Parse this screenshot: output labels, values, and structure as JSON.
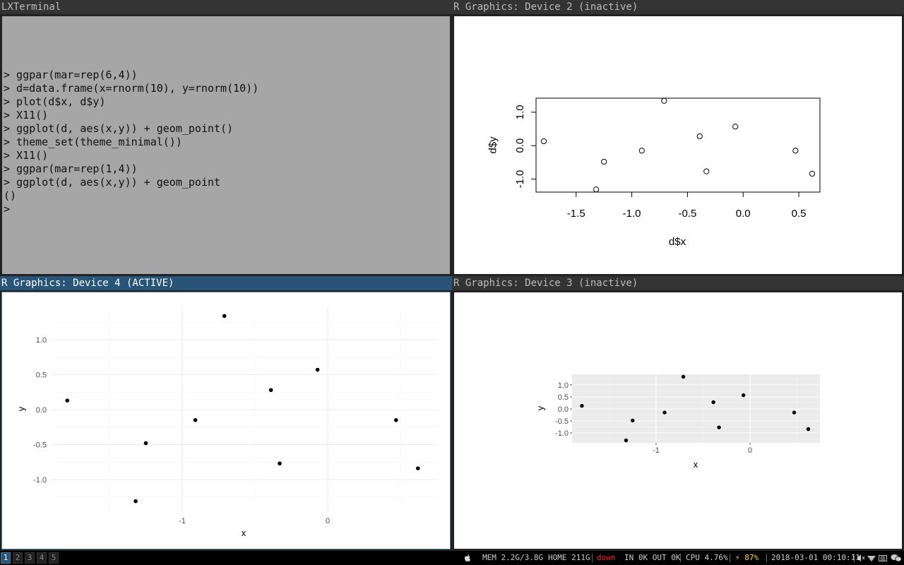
{
  "terminal": {
    "title": "LXTerminal",
    "lines": [
      "> ggpar(mar=rep(6,4))",
      "> d=data.frame(x=rnorm(10), y=rnorm(10))",
      "> plot(d$x, d$y)",
      "> X11()",
      "> ggplot(d, aes(x,y)) + geom_point()",
      "> theme_set(theme_minimal())",
      "> X11()",
      "> ggpar(mar=rep(1,4))",
      "> ggplot(d, aes(x,y)) + geom_point",
      "()",
      ">"
    ]
  },
  "device2": {
    "title": "R Graphics: Device 2 (inactive)",
    "xlabel": "d$x",
    "ylabel": "d$y",
    "xticks": [
      "-1.5",
      "-1.0",
      "-0.5",
      "0.0",
      "0.5"
    ],
    "yticks": [
      "1.0",
      "0.0",
      "-1.0"
    ]
  },
  "device4": {
    "title": "R Graphics: Device 4 (ACTIVE)",
    "xlabel": "x",
    "ylabel": "y",
    "xticks": [
      "-1",
      "0"
    ],
    "yticks": [
      "1.0",
      "0.5",
      "0.0",
      "-0.5",
      "-1.0"
    ]
  },
  "device3": {
    "title": "R Graphics: Device 3 (inactive)",
    "xlabel": "x",
    "ylabel": "y",
    "xticks": [
      "-1",
      "0"
    ],
    "yticks": [
      "1.0",
      "0.5",
      "0.0",
      "-0.5",
      "-1.0"
    ]
  },
  "chart_data": [
    {
      "type": "scatter",
      "title": "",
      "xlabel": "d$x",
      "ylabel": "d$y",
      "x": [
        -1.79,
        -1.32,
        -1.25,
        -0.91,
        -0.71,
        -0.39,
        -0.33,
        -0.07,
        0.47,
        0.62
      ],
      "y": [
        0.13,
        -1.31,
        -0.48,
        -0.15,
        1.34,
        0.28,
        -0.77,
        0.57,
        -0.15,
        -0.84
      ],
      "xlim": [
        -1.86,
        0.69
      ],
      "ylim": [
        -1.39,
        1.42
      ],
      "marker": "open-circle",
      "grid": false
    },
    {
      "type": "scatter",
      "title": "",
      "xlabel": "x",
      "ylabel": "y",
      "x": [
        -1.79,
        -1.32,
        -1.25,
        -0.91,
        -0.71,
        -0.39,
        -0.33,
        -0.07,
        0.47,
        0.62
      ],
      "y": [
        0.13,
        -1.31,
        -0.48,
        -0.15,
        1.34,
        0.28,
        -0.77,
        0.57,
        -0.15,
        -0.84
      ],
      "marker": "filled-dot",
      "grid": true,
      "theme": "minimal"
    },
    {
      "type": "scatter",
      "title": "",
      "xlabel": "x",
      "ylabel": "y",
      "x": [
        -1.79,
        -1.32,
        -1.25,
        -0.91,
        -0.71,
        -0.39,
        -0.33,
        -0.07,
        0.47,
        0.62
      ],
      "y": [
        0.13,
        -1.31,
        -0.48,
        -0.15,
        1.34,
        0.28,
        -0.77,
        0.57,
        -0.15,
        -0.84
      ],
      "marker": "filled-dot",
      "grid": true,
      "theme": "grey"
    }
  ],
  "statusbar": {
    "workspaces": [
      "1",
      "2",
      "3",
      "4",
      "5"
    ],
    "focused_workspace": "1",
    "apple_icon": "apple-icon",
    "mem": "MEM 2.2G/3.8G",
    "home": "HOME 211G",
    "net_status": "down",
    "net_status_color": "#ff2020",
    "io": "IN 0K OUT 0K",
    "cpu": "CPU 4.76%",
    "battery": "⚡ 87%",
    "datetime": "2018-03-01 00:10:11",
    "tray_icons": [
      "volume-icon",
      "wifi-icon",
      "keyboard-icon",
      "chat-icon"
    ]
  }
}
